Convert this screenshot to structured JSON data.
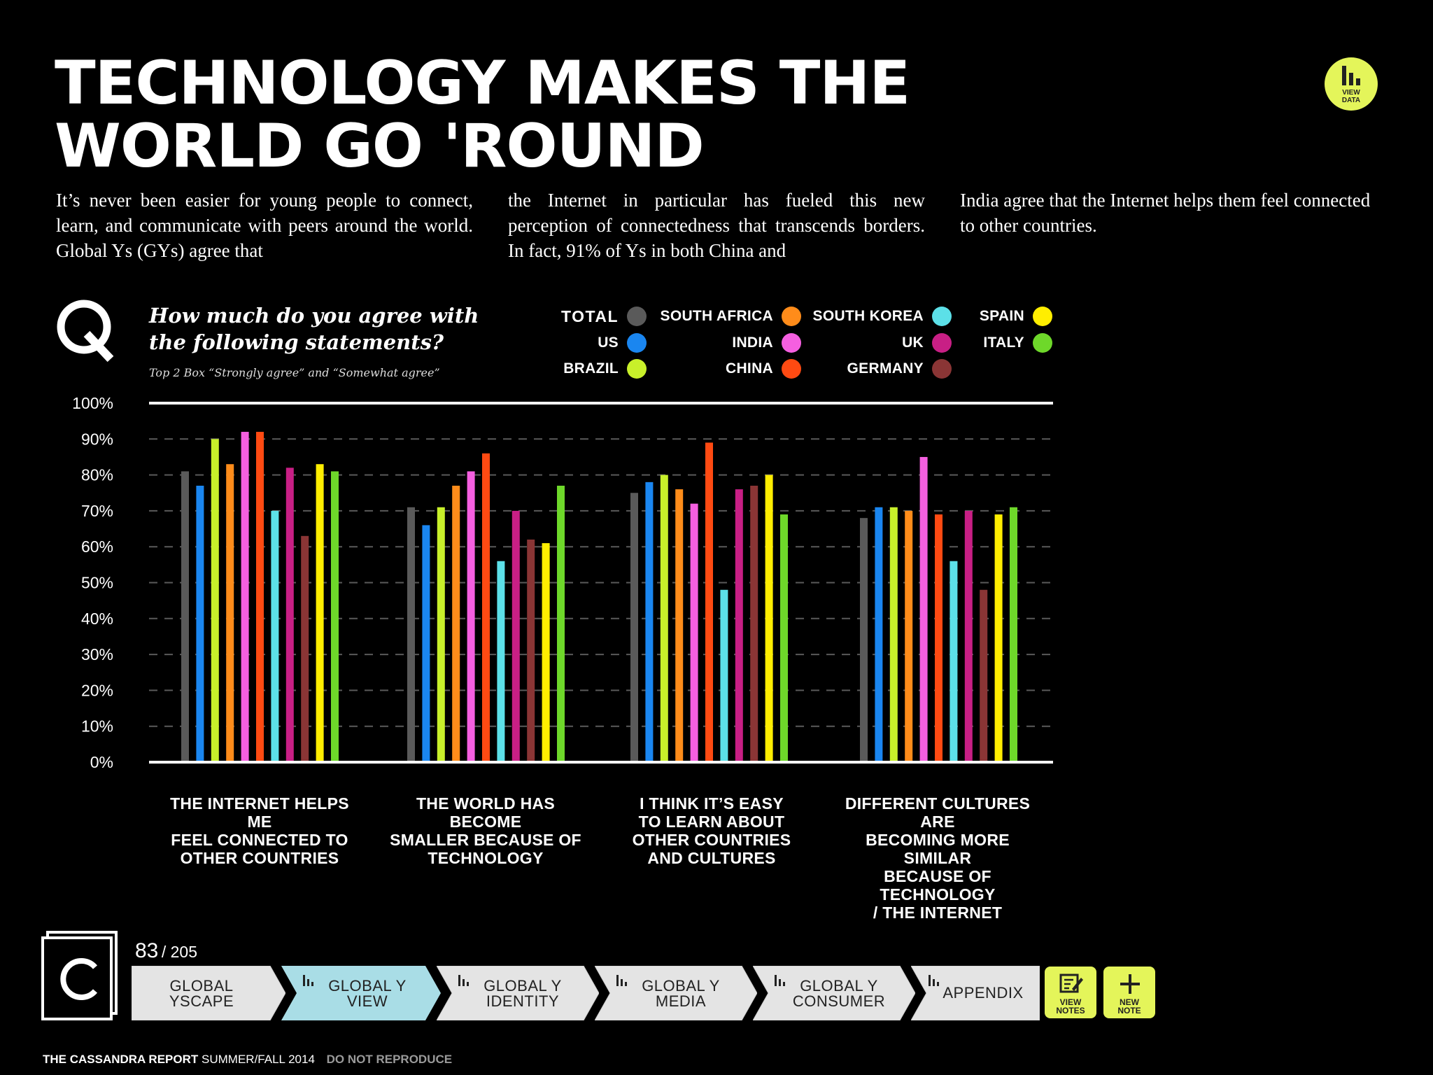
{
  "header": {
    "title_line1": "TECHNOLOGY MAKES THE",
    "title_line2": "WORLD GO 'ROUND",
    "view_data_label_1": "VIEW",
    "view_data_label_2": "DATA"
  },
  "intro": {
    "col1": "It’s never been easier for young people to connect, learn, and communicate with peers around the world. Global Ys (GYs) agree that",
    "col2": "the Internet in particular has fueled this new perception of connectedness that transcends borders. In fact, 91% of Ys in both China and",
    "col3": "India agree that the Internet helps them feel connected to other countries."
  },
  "question": {
    "text": "How much do you agree with the following statements?",
    "subtext": "Top 2 Box “Strongly agree” and “Somewhat agree”"
  },
  "legend": [
    {
      "label": "TOTAL",
      "color": "#5a5a5a"
    },
    {
      "label": "US",
      "color": "#1a86f0"
    },
    {
      "label": "BRAZIL",
      "color": "#c8f02a"
    },
    {
      "label": "SOUTH AFRICA",
      "color": "#ff8c1a"
    },
    {
      "label": "INDIA",
      "color": "#f55fe0"
    },
    {
      "label": "CHINA",
      "color": "#ff4a12"
    },
    {
      "label": "SOUTH KOREA",
      "color": "#5ce0e8"
    },
    {
      "label": "UK",
      "color": "#c81f85"
    },
    {
      "label": "GERMANY",
      "color": "#8a3535"
    },
    {
      "label": "SPAIN",
      "color": "#ffee00"
    },
    {
      "label": "ITALY",
      "color": "#6ed82a"
    }
  ],
  "chart_data": {
    "type": "bar",
    "title": "How much do you agree with the following statements?",
    "subtitle": "Top 2 Box “Strongly agree” and “Somewhat agree”",
    "ylim": [
      0,
      100
    ],
    "yticks": [
      "0%",
      "10%",
      "20%",
      "30%",
      "40%",
      "50%",
      "60%",
      "70%",
      "80%",
      "90%",
      "100%"
    ],
    "grid": true,
    "legend_position": "top-right",
    "categories": [
      "THE INTERNET HELPS ME FEEL CONNECTED TO OTHER COUNTRIES",
      "THE WORLD HAS BECOME SMALLER BECAUSE OF TECHNOLOGY",
      "I THINK IT’S EASY TO LEARN ABOUT OTHER COUNTRIES AND CULTURES",
      "DIFFERENT CULTURES ARE BECOMING MORE SIMILAR BECAUSE OF TECHNOLOGY / THE INTERNET"
    ],
    "category_lines": [
      [
        "THE INTERNET HELPS ME",
        "FEEL CONNECTED TO",
        "OTHER COUNTRIES"
      ],
      [
        "THE WORLD HAS BECOME",
        "SMALLER BECAUSE OF",
        "TECHNOLOGY"
      ],
      [
        "I THINK IT’S EASY",
        "TO LEARN ABOUT",
        "OTHER COUNTRIES",
        "AND CULTURES"
      ],
      [
        "DIFFERENT CULTURES ARE",
        "BECOMING MORE SIMILAR",
        "BECAUSE OF TECHNOLOGY",
        "/ THE INTERNET"
      ]
    ],
    "series": [
      {
        "name": "TOTAL",
        "values": [
          81,
          71,
          75,
          68
        ]
      },
      {
        "name": "US",
        "values": [
          77,
          66,
          78,
          71
        ]
      },
      {
        "name": "BRAZIL",
        "values": [
          90,
          71,
          80,
          71
        ]
      },
      {
        "name": "SOUTH AFRICA",
        "values": [
          83,
          77,
          76,
          70
        ]
      },
      {
        "name": "INDIA",
        "values": [
          92,
          81,
          72,
          85
        ]
      },
      {
        "name": "CHINA",
        "values": [
          92,
          86,
          89,
          69
        ]
      },
      {
        "name": "SOUTH KOREA",
        "values": [
          70,
          56,
          48,
          56
        ]
      },
      {
        "name": "UK",
        "values": [
          82,
          70,
          76,
          70
        ]
      },
      {
        "name": "GERMANY",
        "values": [
          63,
          62,
          77,
          48
        ]
      },
      {
        "name": "SPAIN",
        "values": [
          83,
          61,
          80,
          69
        ]
      },
      {
        "name": "ITALY",
        "values": [
          81,
          77,
          69,
          71
        ]
      }
    ]
  },
  "pagination": {
    "current": "83",
    "total": "/ 205"
  },
  "nav": {
    "tabs": [
      {
        "line1": "GLOBAL",
        "line2": "YSCAPE",
        "active": false
      },
      {
        "line1": "GLOBAL Y",
        "line2": "VIEW",
        "active": true
      },
      {
        "line1": "GLOBAL Y",
        "line2": "IDENTITY",
        "active": false
      },
      {
        "line1": "GLOBAL Y",
        "line2": "MEDIA",
        "active": false
      },
      {
        "line1": "GLOBAL Y",
        "line2": "CONSUMER",
        "active": false
      },
      {
        "line1": "APPENDIX",
        "line2": "",
        "active": false
      }
    ],
    "view_notes_1": "VIEW",
    "view_notes_2": "NOTES",
    "new_note_1": "NEW",
    "new_note_2": "NOTE"
  },
  "footer": {
    "brand": "THE CASSANDRA REPORT",
    "edition": "SUMMER/FALL 2014",
    "notice": "DO NOT REPRODUCE"
  },
  "colors": {
    "accent_yellow": "#e4f55a",
    "nav_active": "#a9dde6",
    "nav_inactive": "#e4e4e4"
  }
}
